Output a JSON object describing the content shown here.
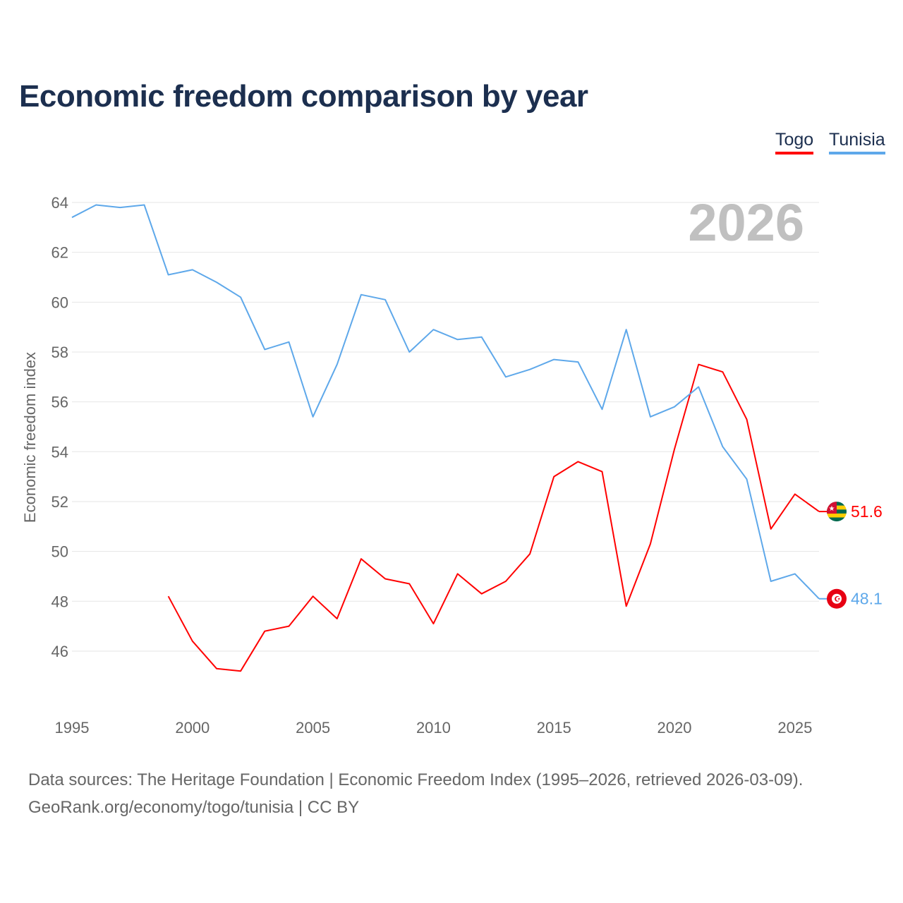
{
  "title": "Economic freedom comparison by year",
  "legend": [
    {
      "name": "Togo",
      "color": "#ff0000"
    },
    {
      "name": "Tunisia",
      "color": "#5ea8ea"
    }
  ],
  "footer": {
    "line1": "Data sources: The Heritage Foundation | Economic Freedom Index (1995–2026, retrieved 2026-03-09).",
    "line2": "GeoRank.org/economy/togo/tunisia | CC BY"
  },
  "chart_data": {
    "type": "line",
    "title": "Economic freedom comparison by year",
    "ylabel": "Economic freedom index",
    "xlabel": "",
    "year_watermark": "2026",
    "xlim": [
      1995,
      2026
    ],
    "ylim": [
      44,
      65
    ],
    "x_ticks": [
      "1995",
      "2000",
      "2005",
      "2010",
      "2015",
      "2020",
      "2025"
    ],
    "y_ticks": [
      "46",
      "48",
      "50",
      "52",
      "54",
      "56",
      "58",
      "60",
      "62",
      "64"
    ],
    "grid": true,
    "legend_position": "top-right",
    "series": [
      {
        "name": "Togo",
        "color": "#ff0000",
        "end_label": "51.6",
        "flag_icon": "togo-flag-icon",
        "x": [
          1999,
          2000,
          2001,
          2002,
          2003,
          2004,
          2005,
          2006,
          2007,
          2008,
          2009,
          2010,
          2011,
          2012,
          2013,
          2014,
          2015,
          2016,
          2017,
          2018,
          2019,
          2020,
          2021,
          2022,
          2023,
          2024,
          2025,
          2026
        ],
        "values": [
          48.2,
          46.4,
          45.3,
          45.2,
          46.8,
          47.0,
          48.2,
          47.3,
          49.7,
          48.9,
          48.7,
          47.1,
          49.1,
          48.3,
          48.8,
          49.9,
          53.0,
          53.6,
          53.2,
          47.8,
          50.3,
          54.1,
          57.5,
          57.2,
          55.3,
          50.9,
          52.3,
          51.6
        ]
      },
      {
        "name": "Tunisia",
        "color": "#5ea8ea",
        "end_label": "48.1",
        "flag_icon": "tunisia-flag-icon",
        "x": [
          1995,
          1996,
          1997,
          1998,
          1999,
          2000,
          2001,
          2002,
          2003,
          2004,
          2005,
          2006,
          2007,
          2008,
          2009,
          2010,
          2011,
          2012,
          2013,
          2014,
          2015,
          2016,
          2017,
          2018,
          2019,
          2020,
          2021,
          2022,
          2023,
          2024,
          2025,
          2026
        ],
        "values": [
          63.4,
          63.9,
          63.8,
          63.9,
          61.1,
          61.3,
          60.8,
          60.2,
          58.1,
          58.4,
          55.4,
          57.5,
          60.3,
          60.1,
          58.0,
          58.9,
          58.5,
          58.6,
          57.0,
          57.3,
          57.7,
          57.6,
          55.7,
          58.9,
          55.4,
          55.8,
          56.6,
          54.2,
          52.9,
          48.8,
          49.1,
          48.1
        ]
      }
    ]
  }
}
